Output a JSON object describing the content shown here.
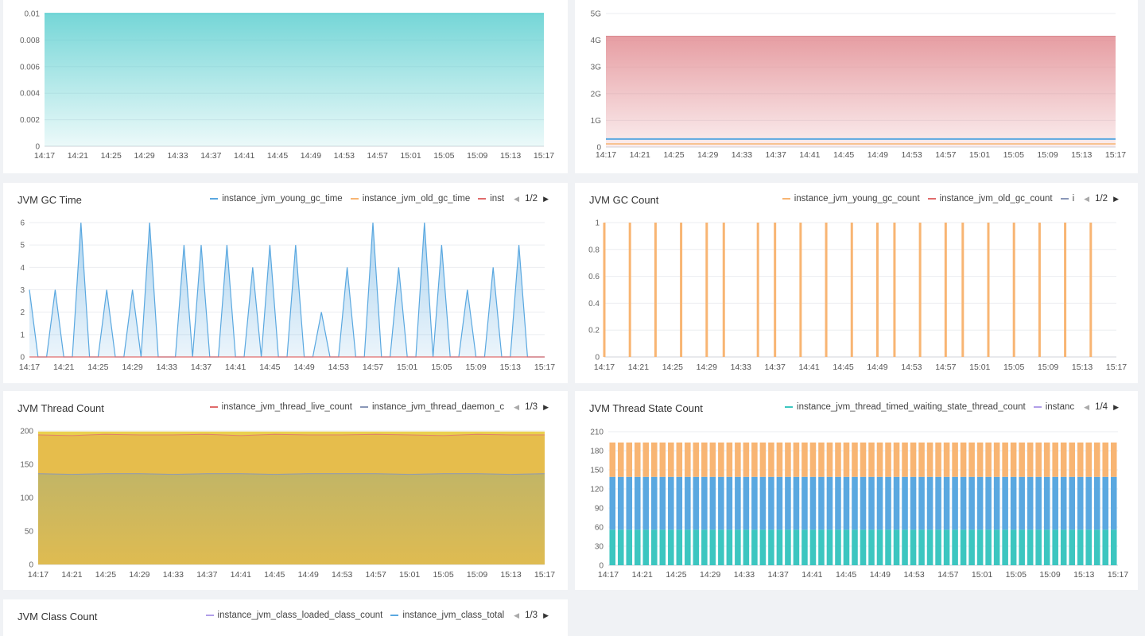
{
  "x_ticks": [
    "14:17",
    "14:21",
    "14:25",
    "14:29",
    "14:33",
    "14:37",
    "14:41",
    "14:45",
    "14:49",
    "14:53",
    "14:57",
    "15:01",
    "15:05",
    "15:09",
    "15:13",
    "15:17"
  ],
  "colors": {
    "teal": "#5dcfd0",
    "red": "#e28c92",
    "blue": "#5aa8e0",
    "orange": "#f8b573",
    "yellow": "#e8c24a",
    "olive": "#c9b966",
    "purple": "#b19ee8"
  },
  "panels": {
    "p1": {
      "chart_data": {
        "type": "area",
        "y_ticks": [
          "0",
          "0.002",
          "0.004",
          "0.006",
          "0.008",
          "0.01"
        ],
        "ylim": [
          0,
          0.01
        ],
        "series": [
          {
            "values": [
              0.01,
              0.01
            ]
          }
        ]
      }
    },
    "p2": {
      "chart_data": {
        "type": "area",
        "y_ticks": [
          "0",
          "1G",
          "2G",
          "3G",
          "4G",
          "5G"
        ],
        "ylim": [
          0,
          5
        ],
        "series": [
          {
            "values": [
              4.15,
              4.15
            ]
          },
          {
            "values": [
              0.3,
              0.3
            ]
          },
          {
            "values": [
              0.12,
              0.12
            ]
          }
        ]
      }
    },
    "p3": {
      "title": "JVM GC Time",
      "legend": [
        {
          "label": "instance_jvm_young_gc_time",
          "color": "#5aa8e0"
        },
        {
          "label": "instance_jvm_old_gc_time",
          "color": "#f8b573"
        },
        {
          "label": "inst",
          "color": "#e06c6c"
        }
      ],
      "page": "1/2",
      "chart_data": {
        "type": "area",
        "y_ticks": [
          "0",
          "1",
          "2",
          "3",
          "4",
          "5",
          "6"
        ],
        "ylim": [
          0,
          6
        ],
        "x_range": [
          0,
          60
        ],
        "series": [
          {
            "name": "instance_jvm_young_gc_time",
            "x": [
              0,
              1,
              2,
              3,
              4,
              5,
              6,
              7,
              8,
              9,
              10,
              11,
              12,
              13,
              14,
              15,
              16,
              17,
              18,
              19,
              20,
              21,
              22,
              23,
              24,
              25,
              26,
              27,
              28,
              29,
              30,
              31,
              32,
              33,
              34,
              35,
              36,
              37,
              38,
              39,
              40,
              41,
              42,
              43,
              44,
              45,
              46,
              47,
              48,
              49,
              50,
              51,
              52,
              53,
              54,
              55,
              56,
              57,
              58,
              59,
              60
            ],
            "values": [
              3,
              0,
              0,
              3,
              0,
              0,
              6,
              0,
              0,
              3,
              0,
              0,
              3,
              0,
              6,
              0,
              0,
              0,
              5,
              0,
              5,
              0,
              0,
              5,
              0,
              0,
              4,
              0,
              5,
              0,
              0,
              5,
              0,
              0,
              2,
              0,
              0,
              4,
              0,
              0,
              6,
              0,
              0,
              4,
              0,
              0,
              6,
              0,
              5,
              0,
              0,
              3,
              0,
              0,
              4,
              0,
              0,
              5,
              0,
              0,
              0
            ]
          },
          {
            "name": "instance_jvm_old_gc_time",
            "values": [
              0,
              0
            ]
          }
        ]
      }
    },
    "p4": {
      "title": "JVM GC Count",
      "legend": [
        {
          "label": "instance_jvm_young_gc_count",
          "color": "#f8b573"
        },
        {
          "label": "instance_jvm_old_gc_count",
          "color": "#e06c6c"
        },
        {
          "label": "i",
          "color": "#8a97b8"
        }
      ],
      "page": "1/2",
      "chart_data": {
        "type": "bar",
        "y_ticks": [
          "0",
          "0.2",
          "0.4",
          "0.6",
          "0.8",
          "1"
        ],
        "ylim": [
          0,
          1
        ],
        "x_range": [
          0,
          60
        ],
        "series": [
          {
            "name": "instance_jvm_young_gc_count",
            "x": [
              0,
              3,
              6,
              9,
              12,
              14,
              18,
              20,
              23,
              26,
              29,
              32,
              34,
              37,
              40,
              42,
              45,
              48,
              51,
              54,
              57
            ],
            "values": [
              1,
              1,
              1,
              1,
              1,
              1,
              1,
              1,
              1,
              1,
              1,
              1,
              1,
              1,
              1,
              1,
              1,
              1,
              1,
              1,
              1
            ]
          }
        ]
      }
    },
    "p5": {
      "title": "JVM Thread Count",
      "legend": [
        {
          "label": "instance_jvm_thread_live_count",
          "color": "#e06c6c"
        },
        {
          "label": "instance_jvm_thread_daemon_c",
          "color": "#8a97b8"
        }
      ],
      "page": "1/3",
      "chart_data": {
        "type": "area",
        "y_ticks": [
          "0",
          "50",
          "100",
          "150",
          "200"
        ],
        "ylim": [
          0,
          200
        ],
        "series": [
          {
            "values": [
              199,
              199
            ]
          },
          {
            "name": "instance_jvm_thread_live_count",
            "values": [
              194,
              193,
              195,
              194,
              194,
              195,
              193,
              195,
              194,
              194,
              195,
              194,
              193,
              195,
              194,
              194
            ]
          },
          {
            "name": "instance_jvm_thread_daemon_c",
            "values": [
              136,
              135,
              136,
              136,
              135,
              136,
              136,
              135,
              136,
              136,
              136,
              135,
              136,
              136,
              135,
              136
            ]
          }
        ]
      }
    },
    "p6": {
      "title": "JVM Thread State Count",
      "legend": [
        {
          "label": "instance_jvm_thread_timed_waiting_state_thread_count",
          "color": "#3cc6c0"
        },
        {
          "label": "instanc",
          "color": "#b19ee8"
        }
      ],
      "page": "1/4",
      "chart_data": {
        "type": "bar",
        "stacked": true,
        "y_ticks": [
          "0",
          "30",
          "60",
          "90",
          "120",
          "150",
          "180",
          "210"
        ],
        "ylim": [
          0,
          210
        ],
        "bar_count": 61,
        "series": [
          {
            "name": "instance_jvm_thread_timed_waiting_state_thread_count",
            "value": 56
          },
          {
            "value": 83
          },
          {
            "value": 54
          }
        ]
      }
    },
    "p7": {
      "title": "JVM Class Count",
      "legend": [
        {
          "label": "instance_jvm_class_loaded_class_count",
          "color": "#b19ee8"
        },
        {
          "label": "instance_jvm_class_total",
          "color": "#5aa8e0"
        }
      ],
      "page": "1/3"
    }
  }
}
